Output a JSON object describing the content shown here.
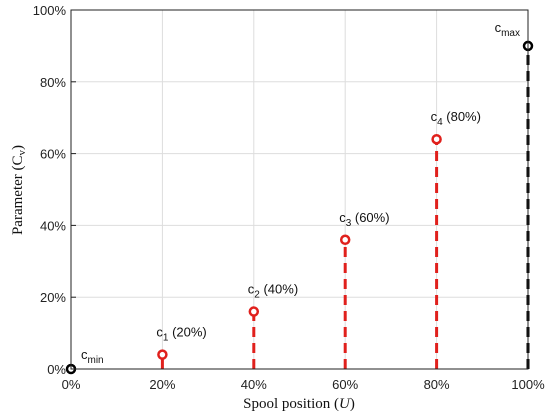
{
  "chart_data": {
    "type": "scatter",
    "xlabel": {
      "main": "Spool position (",
      "var": "U",
      "close": ")"
    },
    "ylabel": {
      "main": "Parameter (",
      "var": "C",
      "sub": "v",
      "close": ")"
    },
    "xlim": [
      0,
      100
    ],
    "ylim": [
      0,
      100
    ],
    "xticks": [
      "0%",
      "20%",
      "40%",
      "60%",
      "80%",
      "100%"
    ],
    "yticks": [
      "0%",
      "20%",
      "40%",
      "60%",
      "80%",
      "100%"
    ],
    "grid": true,
    "points": [
      {
        "x": 0,
        "y": 0,
        "color": "#000000",
        "stem": false,
        "label": {
          "base": "c",
          "sub": "min",
          "suffix": ""
        }
      },
      {
        "x": 20,
        "y": 4,
        "color": "#e0201c",
        "stem": true,
        "label": {
          "base": "c",
          "sub": "1",
          "suffix": " (20%)"
        }
      },
      {
        "x": 40,
        "y": 16,
        "color": "#e0201c",
        "stem": true,
        "label": {
          "base": "c",
          "sub": "2",
          "suffix": " (40%)"
        }
      },
      {
        "x": 60,
        "y": 36,
        "color": "#e0201c",
        "stem": true,
        "label": {
          "base": "c",
          "sub": "3",
          "suffix": " (60%)"
        }
      },
      {
        "x": 80,
        "y": 64,
        "color": "#e0201c",
        "stem": true,
        "label": {
          "base": "c",
          "sub": "4",
          "suffix": " (80%)"
        }
      },
      {
        "x": 100,
        "y": 90,
        "color": "#000000",
        "stem": true,
        "label": {
          "base": "c",
          "sub": "max",
          "suffix": ""
        }
      }
    ]
  }
}
